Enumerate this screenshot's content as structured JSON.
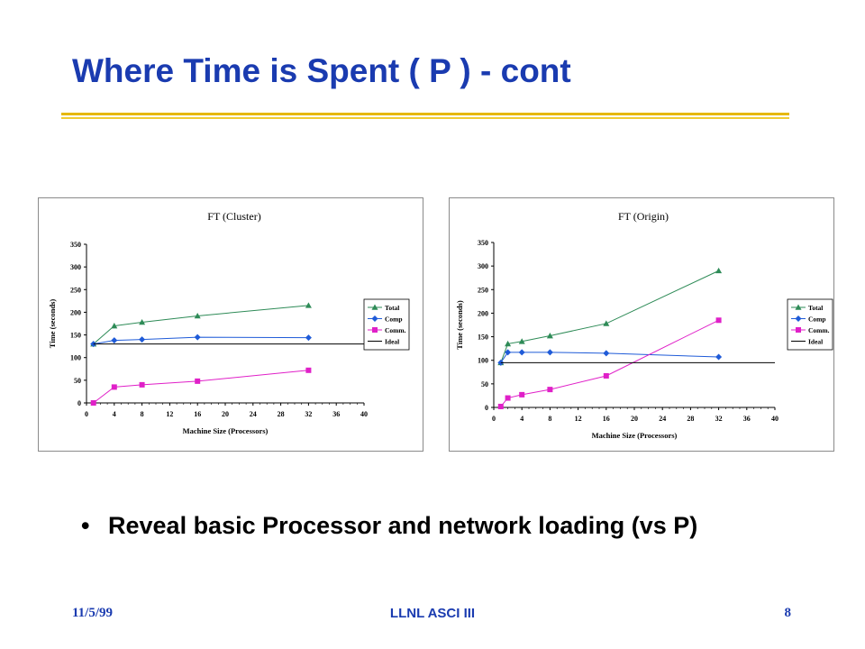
{
  "slide": {
    "title": "Where Time is Spent ( P ) - cont",
    "bullet_glyph": "•",
    "bullet": "Reveal basic Processor and network loading (vs P)",
    "footer_date": "11/5/99",
    "footer_center": "LLNL ASCI III",
    "page_number": "8"
  },
  "colors": {
    "title": "#1a3bb0",
    "rule": "#e6b800",
    "total": "#2e8b57",
    "comp": "#1f5bd8",
    "comm": "#e020c8",
    "ideal": "#000000"
  },
  "chart_data": [
    {
      "type": "line",
      "title": "FT (Cluster)",
      "xlabel": "Machine Size (Processors)",
      "ylabel": "Time (seconds)",
      "xlim": [
        0,
        40
      ],
      "ylim": [
        0,
        350
      ],
      "xticks": [
        0,
        4,
        8,
        12,
        16,
        20,
        24,
        28,
        32,
        36,
        40
      ],
      "yticks": [
        0,
        50,
        100,
        150,
        200,
        250,
        300,
        350
      ],
      "legend_position": "right",
      "grid": false,
      "series": [
        {
          "name": "Total",
          "marker": "triangle",
          "color": "#2e8b57",
          "x": [
            1,
            4,
            8,
            16,
            32
          ],
          "y": [
            130,
            170,
            178,
            192,
            215
          ]
        },
        {
          "name": "Comp",
          "marker": "diamond",
          "color": "#1f5bd8",
          "x": [
            1,
            4,
            8,
            16,
            32
          ],
          "y": [
            130,
            138,
            140,
            145,
            144
          ]
        },
        {
          "name": "Comm.",
          "marker": "square",
          "color": "#e020c8",
          "x": [
            1,
            4,
            8,
            16,
            32
          ],
          "y": [
            0,
            35,
            40,
            48,
            72
          ]
        },
        {
          "name": "Ideal",
          "marker": "none",
          "color": "#000000",
          "x": [
            1,
            40
          ],
          "y": [
            130,
            130
          ]
        }
      ]
    },
    {
      "type": "line",
      "title": "FT (Origin)",
      "xlabel": "Machine Size (Processors)",
      "ylabel": "Time (seconds)",
      "xlim": [
        0,
        40
      ],
      "ylim": [
        0,
        350
      ],
      "xticks": [
        0,
        4,
        8,
        12,
        16,
        20,
        24,
        28,
        32,
        36,
        40
      ],
      "yticks": [
        0,
        50,
        100,
        150,
        200,
        250,
        300,
        350
      ],
      "legend_position": "right",
      "grid": false,
      "series": [
        {
          "name": "Total",
          "marker": "triangle",
          "color": "#2e8b57",
          "x": [
            1,
            2,
            4,
            8,
            16,
            32
          ],
          "y": [
            95,
            135,
            140,
            152,
            178,
            290
          ]
        },
        {
          "name": "Comp",
          "marker": "diamond",
          "color": "#1f5bd8",
          "x": [
            1,
            2,
            4,
            8,
            16,
            32
          ],
          "y": [
            95,
            117,
            117,
            117,
            115,
            107
          ]
        },
        {
          "name": "Comm.",
          "marker": "square",
          "color": "#e020c8",
          "x": [
            1,
            2,
            4,
            8,
            16,
            32
          ],
          "y": [
            2,
            20,
            27,
            38,
            67,
            185
          ]
        },
        {
          "name": "Ideal",
          "marker": "none",
          "color": "#000000",
          "x": [
            1,
            40
          ],
          "y": [
            95,
            95
          ]
        }
      ]
    }
  ]
}
